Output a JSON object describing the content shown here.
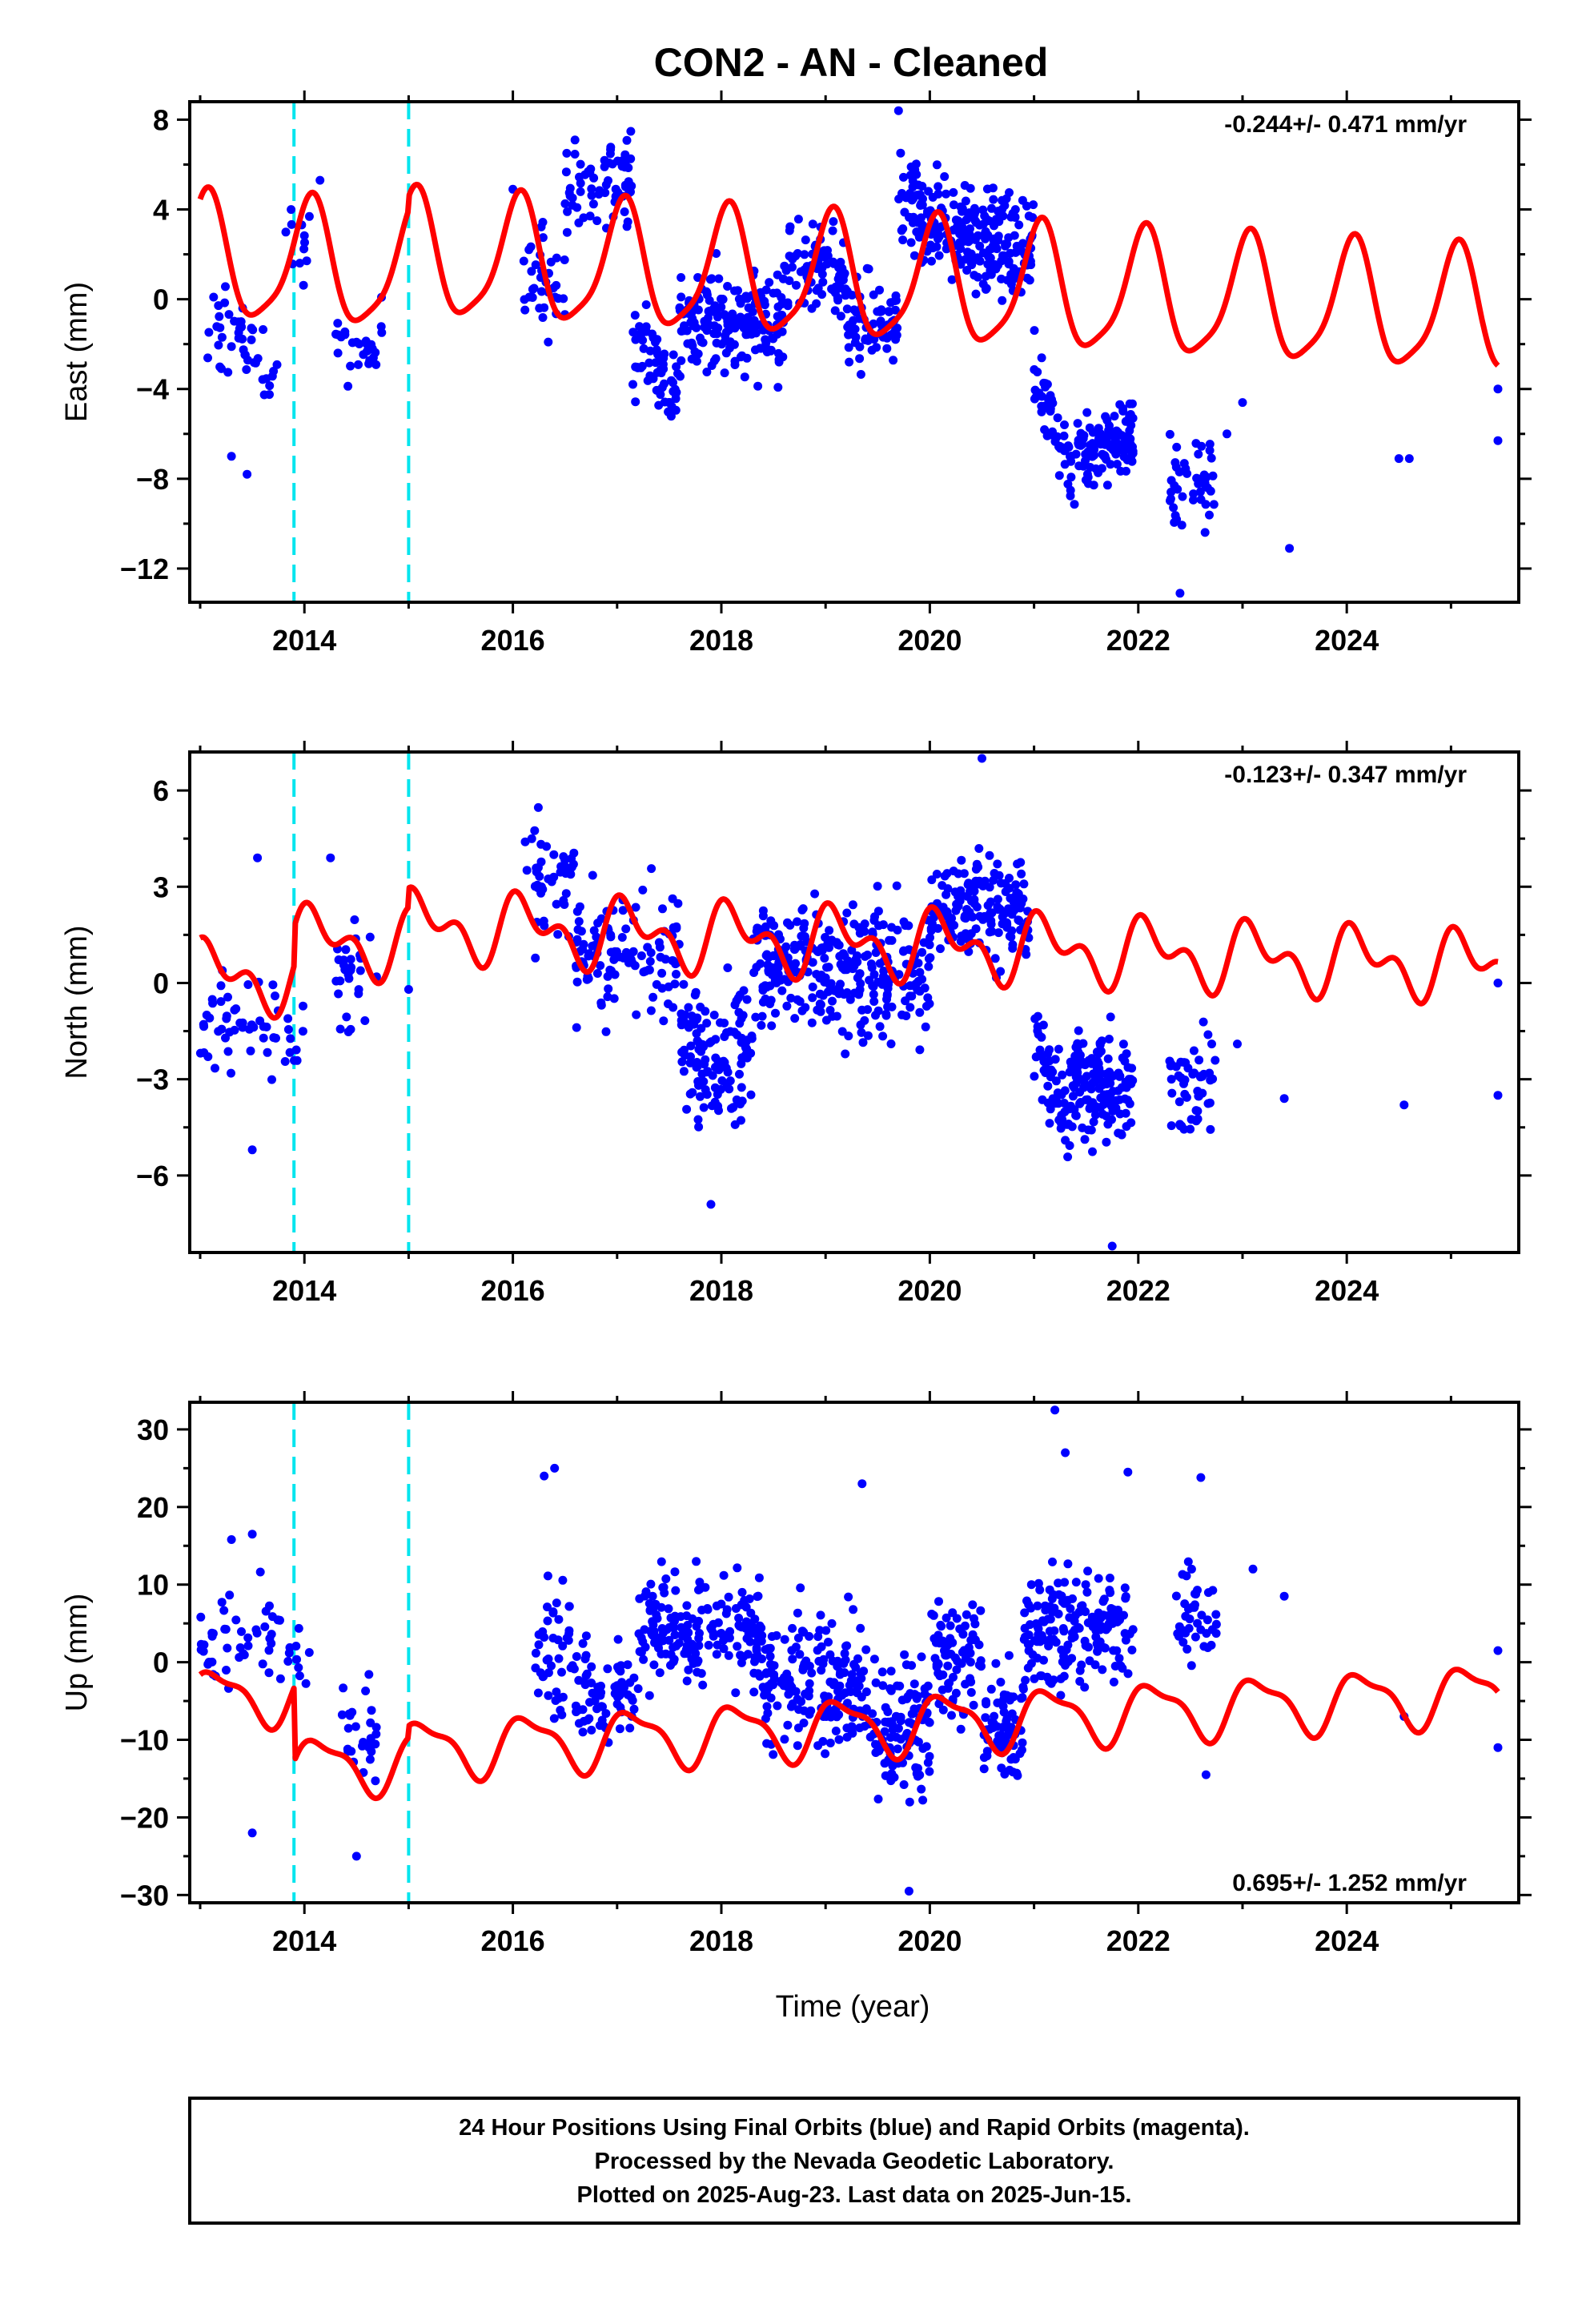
{
  "chart_data": {
    "type": "scatter",
    "title": "CON2  - AN - Cleaned",
    "xlabel": "Time (year)",
    "x_ticks": [
      2014,
      2016,
      2018,
      2020,
      2022,
      2024
    ],
    "xlim": [
      2012.9,
      2025.65
    ],
    "event_lines_x": [
      2013.9,
      2015.0
    ],
    "colors": {
      "points": "#0000ff",
      "model": "#ff0000",
      "events": "#00e5ee"
    },
    "panels": [
      {
        "ylabel": "East (mm)",
        "ylim": [
          -13.5,
          8.8
        ],
        "y_ticks": [
          8,
          4,
          0,
          -4,
          -8,
          -12
        ],
        "y_tick_labels": [
          "8",
          "4",
          "0",
          "−4",
          "−8",
          "−12"
        ],
        "rate": "-0.244+/- 0.471 mm/yr",
        "rate_position": "top-right",
        "model": {
          "offset": 0.3,
          "trend": -0.244,
          "amp1": 2.7,
          "phase1": 1.2,
          "amp2": 0.6,
          "phase2": 0.3,
          "steps": [
            [
              2013.9,
              0.0
            ],
            [
              2015.0,
              0.6
            ]
          ]
        },
        "clusters": [
          {
            "start": 2013.0,
            "end": 2013.75,
            "count": 45,
            "base": -1.0,
            "slope": -2.0,
            "spread": 1.6
          },
          {
            "start": 2013.8,
            "end": 2014.05,
            "count": 12,
            "base": 2.5,
            "slope": 0.0,
            "spread": 1.4
          },
          {
            "start": 2014.3,
            "end": 2014.75,
            "count": 28,
            "base": -2.2,
            "slope": 0.5,
            "spread": 1.3
          },
          {
            "start": 2016.1,
            "end": 2016.5,
            "count": 35,
            "base": 0.6,
            "slope": 0.0,
            "spread": 2.0
          },
          {
            "start": 2016.5,
            "end": 2017.15,
            "count": 70,
            "base": 5.0,
            "slope": 0.5,
            "spread": 1.6
          },
          {
            "start": 2017.15,
            "end": 2017.6,
            "count": 60,
            "base": -2.0,
            "slope": -2.0,
            "spread": 1.8
          },
          {
            "start": 2017.6,
            "end": 2018.6,
            "count": 180,
            "base": -1.0,
            "slope": 0.0,
            "spread": 1.9
          },
          {
            "start": 2018.6,
            "end": 2019.2,
            "count": 90,
            "base": 1.2,
            "slope": 0.0,
            "spread": 1.6
          },
          {
            "start": 2019.2,
            "end": 2019.7,
            "count": 70,
            "base": -1.2,
            "slope": 0.0,
            "spread": 1.7
          },
          {
            "start": 2019.7,
            "end": 2020.4,
            "count": 140,
            "base": 4.0,
            "slope": -1.0,
            "spread": 1.7
          },
          {
            "start": 2020.4,
            "end": 2021.0,
            "count": 120,
            "base": 2.5,
            "slope": 0.0,
            "spread": 1.8
          },
          {
            "start": 2021.0,
            "end": 2021.4,
            "count": 50,
            "base": -3.0,
            "slope": -5.0,
            "spread": 1.5
          },
          {
            "start": 2021.4,
            "end": 2021.95,
            "count": 110,
            "base": -7.0,
            "slope": 1.0,
            "spread": 1.5
          },
          {
            "start": 2022.3,
            "end": 2022.75,
            "count": 45,
            "base": -8.5,
            "slope": 0.5,
            "spread": 1.8
          }
        ],
        "isolated": [
          [
            2013.3,
            -7.0
          ],
          [
            2013.45,
            -7.8
          ],
          [
            2014.15,
            5.3
          ],
          [
            2016.0,
            4.9
          ],
          [
            2022.85,
            -6.0
          ],
          [
            2023.0,
            -4.6
          ],
          [
            2023.45,
            -11.1
          ],
          [
            2024.5,
            -7.1
          ],
          [
            2024.6,
            -7.1
          ],
          [
            2025.45,
            -4.0
          ],
          [
            2025.45,
            -6.3
          ],
          [
            2019.7,
            8.4
          ],
          [
            2022.4,
            -13.1
          ]
        ]
      },
      {
        "ylabel": "North (mm)",
        "ylim": [
          -8.4,
          7.2
        ],
        "y_ticks": [
          6,
          3,
          0,
          -3,
          -6
        ],
        "y_tick_labels": [
          "6",
          "3",
          "0",
          "−3",
          "−6"
        ],
        "rate": "-0.123+/- 0.347 mm/yr",
        "rate_position": "top-right",
        "model": {
          "offset": -0.5,
          "trend": -0.123,
          "amp1": 0.8,
          "phase1": 0.8,
          "amp2": 0.6,
          "phase2": 1.7,
          "steps": [
            [
              2013.9,
              1.2
            ],
            [
              2015.0,
              0.6
            ]
          ]
        },
        "clusters": [
          {
            "start": 2013.0,
            "end": 2013.75,
            "count": 45,
            "base": -1.2,
            "slope": 0.0,
            "spread": 1.5
          },
          {
            "start": 2013.8,
            "end": 2014.05,
            "count": 10,
            "base": -1.5,
            "slope": 0.0,
            "spread": 1.0
          },
          {
            "start": 2014.3,
            "end": 2014.7,
            "count": 28,
            "base": 0.2,
            "slope": 0.0,
            "spread": 1.4
          },
          {
            "start": 2016.1,
            "end": 2016.6,
            "count": 45,
            "base": 3.0,
            "slope": 0.0,
            "spread": 1.4
          },
          {
            "start": 2016.6,
            "end": 2017.6,
            "count": 110,
            "base": 0.9,
            "slope": 0.0,
            "spread": 1.6
          },
          {
            "start": 2017.6,
            "end": 2018.3,
            "count": 130,
            "base": -2.0,
            "slope": 0.0,
            "spread": 1.7
          },
          {
            "start": 2018.3,
            "end": 2019.0,
            "count": 130,
            "base": 0.4,
            "slope": 0.0,
            "spread": 1.6
          },
          {
            "start": 2019.0,
            "end": 2020.0,
            "count": 170,
            "base": 0.3,
            "slope": 0.0,
            "spread": 1.6
          },
          {
            "start": 2020.0,
            "end": 2020.95,
            "count": 160,
            "base": 2.3,
            "slope": 0.0,
            "spread": 1.4
          },
          {
            "start": 2021.0,
            "end": 2021.35,
            "count": 55,
            "base": -1.5,
            "slope": -3.0,
            "spread": 1.2
          },
          {
            "start": 2021.35,
            "end": 2021.95,
            "count": 140,
            "base": -3.2,
            "slope": 0.0,
            "spread": 1.3
          },
          {
            "start": 2022.3,
            "end": 2022.75,
            "count": 50,
            "base": -3.2,
            "slope": 0.0,
            "spread": 1.3
          }
        ],
        "isolated": [
          [
            2013.55,
            3.9
          ],
          [
            2013.5,
            -5.2
          ],
          [
            2014.25,
            3.9
          ],
          [
            2015.0,
            -0.2
          ],
          [
            2017.9,
            -6.9
          ],
          [
            2020.5,
            7.0
          ],
          [
            2022.95,
            -1.9
          ],
          [
            2023.4,
            -3.6
          ],
          [
            2024.55,
            -3.8
          ],
          [
            2025.45,
            -3.5
          ],
          [
            2025.45,
            0.0
          ],
          [
            2021.75,
            -8.2
          ]
        ]
      },
      {
        "ylabel": "Up (mm)",
        "ylim": [
          -31.0,
          33.5
        ],
        "y_ticks": [
          30,
          20,
          10,
          0,
          -10,
          -20,
          -30
        ],
        "y_tick_labels": [
          "30",
          "20",
          "10",
          "0",
          "−10",
          "−20",
          "−30"
        ],
        "rate": "0.695+/- 1.252 mm/yr",
        "rate_position": "bottom-right",
        "model": {
          "offset": -0.5,
          "trend": 0.695,
          "amp1": 3.5,
          "phase1": 0.6,
          "amp2": 1.2,
          "phase2": 2.0,
          "steps": [
            [
              2013.9,
              -9.5
            ],
            [
              2015.0,
              1.5
            ]
          ]
        },
        "clusters": [
          {
            "start": 2013.0,
            "end": 2013.8,
            "count": 45,
            "base": 3.0,
            "slope": 0.0,
            "spread": 5.0
          },
          {
            "start": 2013.8,
            "end": 2014.05,
            "count": 10,
            "base": 0.0,
            "slope": 0.0,
            "spread": 5.0
          },
          {
            "start": 2014.35,
            "end": 2014.7,
            "count": 28,
            "base": -9.0,
            "slope": 0.0,
            "spread": 6.0
          },
          {
            "start": 2016.2,
            "end": 2016.6,
            "count": 45,
            "base": 2.0,
            "slope": 0.0,
            "spread": 7.0
          },
          {
            "start": 2016.6,
            "end": 2017.2,
            "count": 70,
            "base": -4.0,
            "slope": 0.0,
            "spread": 5.5
          },
          {
            "start": 2017.2,
            "end": 2018.4,
            "count": 190,
            "base": 4.0,
            "slope": 0.0,
            "spread": 6.0
          },
          {
            "start": 2018.4,
            "end": 2019.4,
            "count": 170,
            "base": -3.0,
            "slope": 0.0,
            "spread": 7.0
          },
          {
            "start": 2019.4,
            "end": 2020.0,
            "count": 110,
            "base": -8.0,
            "slope": 0.0,
            "spread": 7.0
          },
          {
            "start": 2020.0,
            "end": 2020.5,
            "count": 80,
            "base": 1.0,
            "slope": 0.0,
            "spread": 6.0
          },
          {
            "start": 2020.5,
            "end": 2020.9,
            "count": 70,
            "base": -8.0,
            "slope": 0.0,
            "spread": 6.5
          },
          {
            "start": 2020.9,
            "end": 2021.95,
            "count": 170,
            "base": 4.0,
            "slope": 0.0,
            "spread": 6.0
          },
          {
            "start": 2022.35,
            "end": 2022.75,
            "count": 40,
            "base": 6.0,
            "slope": 0.0,
            "spread": 5.0
          }
        ],
        "isolated": [
          [
            2013.3,
            15.8
          ],
          [
            2013.5,
            16.5
          ],
          [
            2013.5,
            -22.0
          ],
          [
            2016.3,
            24.0
          ],
          [
            2016.4,
            25.0
          ],
          [
            2019.35,
            23.0
          ],
          [
            2019.8,
            -29.5
          ],
          [
            2021.2,
            32.5
          ],
          [
            2021.3,
            27.0
          ],
          [
            2021.9,
            24.5
          ],
          [
            2022.6,
            23.8
          ],
          [
            2022.65,
            -14.5
          ],
          [
            2023.1,
            12.0
          ],
          [
            2023.4,
            8.5
          ],
          [
            2024.55,
            -7.0
          ],
          [
            2025.45,
            1.5
          ],
          [
            2025.45,
            -11.0
          ],
          [
            2014.5,
            -25.0
          ]
        ]
      }
    ]
  },
  "footer": {
    "line1": "24 Hour Positions Using Final Orbits (blue) and Rapid Orbits (magenta).",
    "line2": "Processed by the Nevada Geodetic Laboratory.",
    "line3": "Plotted on 2025-Aug-23. Last data on 2025-Jun-15."
  }
}
